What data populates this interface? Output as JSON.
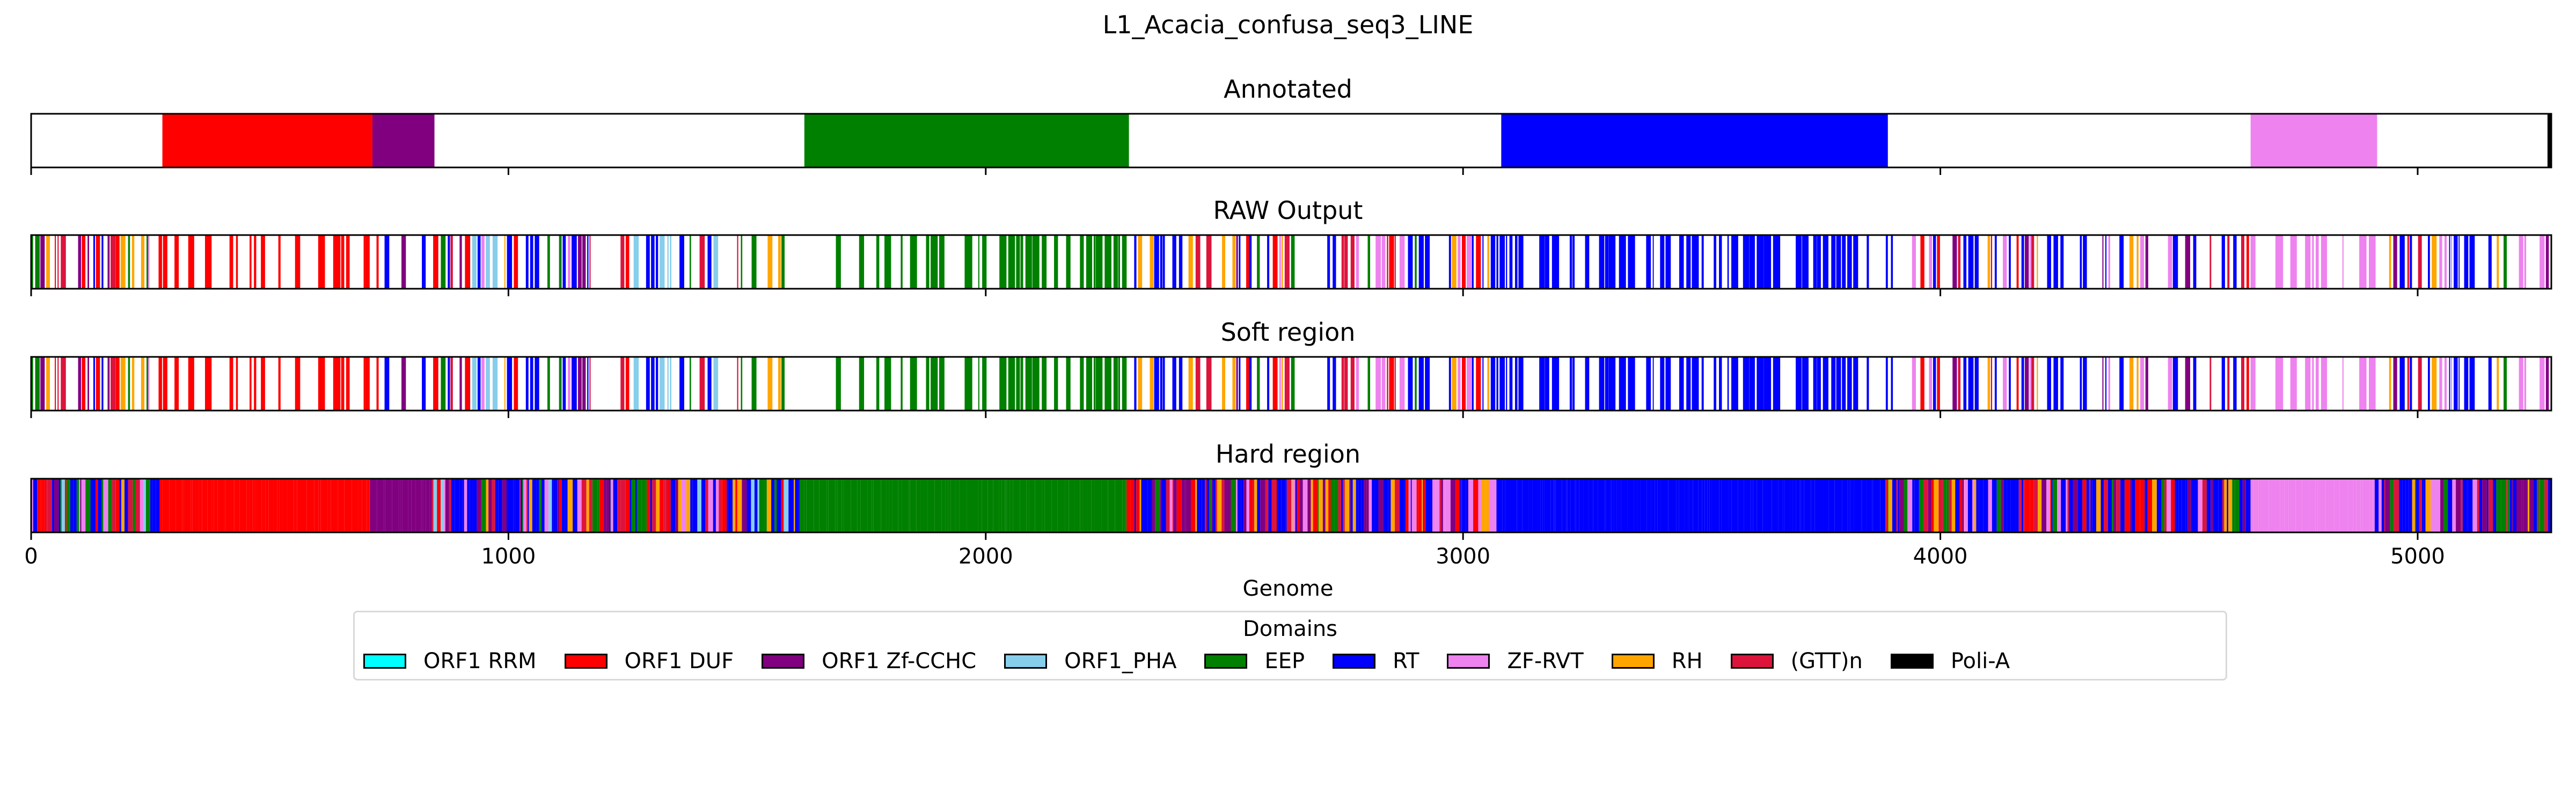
{
  "figure": {
    "title": "L1_Acacia_confusa_seq3_LINE",
    "xlabel": "Genome"
  },
  "legend": {
    "title": "Domains",
    "items": [
      {
        "label": "ORF1 RRM",
        "color": "#00ffff"
      },
      {
        "label": "ORF1 DUF",
        "color": "#ff0000"
      },
      {
        "label": "ORF1 Zf-CCHC",
        "color": "#800080"
      },
      {
        "label": "ORF1_PHA",
        "color": "#87ceeb"
      },
      {
        "label": "EEP",
        "color": "#008000"
      },
      {
        "label": "RT",
        "color": "#0000ff"
      },
      {
        "label": "ZF-RVT",
        "color": "#ee82ee"
      },
      {
        "label": "RH",
        "color": "#ffa500"
      },
      {
        "label": "(GTT)n",
        "color": "#dc143c"
      },
      {
        "label": "Poli-A",
        "color": "#000000"
      }
    ]
  },
  "chart_data": {
    "type": "bar",
    "orientation": "horizontal-track",
    "xlim": [
      0,
      5280
    ],
    "x_ticks": [
      0,
      1000,
      2000,
      3000,
      4000,
      5000
    ],
    "tracks": [
      {
        "title": "Annotated",
        "mode": "segments",
        "segments": [
          {
            "domain": "ORF1 DUF",
            "start": 275,
            "end": 715
          },
          {
            "domain": "ORF1 Zf-CCHC",
            "start": 715,
            "end": 845
          },
          {
            "domain": "EEP",
            "start": 1620,
            "end": 2300
          },
          {
            "domain": "RT",
            "start": 3080,
            "end": 3890
          },
          {
            "domain": "ZF-RVT",
            "start": 4650,
            "end": 4915
          },
          {
            "domain": "Poli-A",
            "start": 5272,
            "end": 5280
          }
        ]
      },
      {
        "title": "RAW Output",
        "mode": "stripes",
        "seed": 11,
        "regions": [
          {
            "start": 0,
            "end": 260,
            "domains": [
              "ORF1 DUF",
              "EEP",
              "RT",
              "ORF1 Zf-CCHC",
              "ORF1_PHA",
              "RH",
              "(GTT)n",
              "ZF-RVT"
            ],
            "density": 0.7
          },
          {
            "start": 260,
            "end": 700,
            "domains": [
              "ORF1 DUF"
            ],
            "density": 0.55
          },
          {
            "start": 700,
            "end": 850,
            "domains": [
              "ORF1 Zf-CCHC",
              "ORF1 DUF",
              "RT"
            ],
            "density": 0.6
          },
          {
            "start": 850,
            "end": 1600,
            "domains": [
              "RT",
              "ORF1 Zf-CCHC",
              "ZF-RVT",
              "EEP",
              "RH",
              "(GTT)n",
              "ORF1 DUF",
              "ORF1_PHA"
            ],
            "density": 0.6
          },
          {
            "start": 1600,
            "end": 2300,
            "domains": [
              "EEP"
            ],
            "density": 0.55
          },
          {
            "start": 2300,
            "end": 3070,
            "domains": [
              "RT",
              "ZF-RVT",
              "(GTT)n",
              "EEP",
              "RH",
              "ORF1 Zf-CCHC",
              "ORF1 DUF"
            ],
            "density": 0.6
          },
          {
            "start": 3070,
            "end": 3890,
            "domains": [
              "RT"
            ],
            "density": 0.6
          },
          {
            "start": 3890,
            "end": 4650,
            "domains": [
              "RT",
              "(GTT)n",
              "EEP",
              "ZF-RVT",
              "ORF1 Zf-CCHC",
              "RH",
              "ORF1 DUF"
            ],
            "density": 0.65
          },
          {
            "start": 4650,
            "end": 4915,
            "domains": [
              "ZF-RVT"
            ],
            "density": 0.35
          },
          {
            "start": 4915,
            "end": 5280,
            "domains": [
              "RT",
              "EEP",
              "ZF-RVT",
              "(GTT)n",
              "ORF1 Zf-CCHC",
              "RH"
            ],
            "density": 0.65
          }
        ]
      },
      {
        "title": "Soft region",
        "mode": "stripes",
        "seed": 11,
        "regions": [
          {
            "start": 0,
            "end": 260,
            "domains": [
              "ORF1 DUF",
              "EEP",
              "RT",
              "ORF1 Zf-CCHC",
              "ORF1_PHA",
              "RH",
              "(GTT)n",
              "ZF-RVT"
            ],
            "density": 0.7
          },
          {
            "start": 260,
            "end": 700,
            "domains": [
              "ORF1 DUF"
            ],
            "density": 0.55
          },
          {
            "start": 700,
            "end": 850,
            "domains": [
              "ORF1 Zf-CCHC",
              "ORF1 DUF",
              "RT"
            ],
            "density": 0.6
          },
          {
            "start": 850,
            "end": 1600,
            "domains": [
              "RT",
              "ORF1 Zf-CCHC",
              "ZF-RVT",
              "EEP",
              "RH",
              "(GTT)n",
              "ORF1 DUF",
              "ORF1_PHA"
            ],
            "density": 0.6
          },
          {
            "start": 1600,
            "end": 2300,
            "domains": [
              "EEP"
            ],
            "density": 0.55
          },
          {
            "start": 2300,
            "end": 3070,
            "domains": [
              "RT",
              "ZF-RVT",
              "(GTT)n",
              "EEP",
              "RH",
              "ORF1 Zf-CCHC",
              "ORF1 DUF"
            ],
            "density": 0.6
          },
          {
            "start": 3070,
            "end": 3890,
            "domains": [
              "RT"
            ],
            "density": 0.6
          },
          {
            "start": 3890,
            "end": 4650,
            "domains": [
              "RT",
              "(GTT)n",
              "EEP",
              "ZF-RVT",
              "ORF1 Zf-CCHC",
              "RH",
              "ORF1 DUF"
            ],
            "density": 0.65
          },
          {
            "start": 4650,
            "end": 4915,
            "domains": [
              "ZF-RVT"
            ],
            "density": 0.35
          },
          {
            "start": 4915,
            "end": 5280,
            "domains": [
              "RT",
              "EEP",
              "ZF-RVT",
              "(GTT)n",
              "ORF1 Zf-CCHC",
              "RH"
            ],
            "density": 0.65
          }
        ]
      },
      {
        "title": "Hard region",
        "mode": "stripes",
        "seed": 23,
        "regions": [
          {
            "start": 0,
            "end": 275,
            "domains": [
              "RT",
              "EEP",
              "ORF1 DUF",
              "ORF1 Zf-CCHC",
              "ZF-RVT",
              "RH",
              "(GTT)n",
              "ORF1_PHA"
            ],
            "density": 1.0
          },
          {
            "start": 275,
            "end": 710,
            "domains": [
              "ORF1 DUF"
            ],
            "density": 1.0
          },
          {
            "start": 710,
            "end": 840,
            "domains": [
              "ORF1 Zf-CCHC"
            ],
            "density": 1.0
          },
          {
            "start": 840,
            "end": 1610,
            "domains": [
              "RT",
              "ZF-RVT",
              "ORF1 Zf-CCHC",
              "EEP",
              "RH",
              "(GTT)n",
              "ORF1 DUF",
              "ORF1_PHA"
            ],
            "density": 1.0
          },
          {
            "start": 1610,
            "end": 2295,
            "domains": [
              "EEP"
            ],
            "density": 1.0
          },
          {
            "start": 2295,
            "end": 3070,
            "domains": [
              "RT",
              "ZF-RVT",
              "(GTT)n",
              "EEP",
              "RH",
              "ORF1 Zf-CCHC",
              "ORF1 DUF"
            ],
            "density": 1.0
          },
          {
            "start": 3070,
            "end": 3885,
            "domains": [
              "RT"
            ],
            "density": 1.0
          },
          {
            "start": 3885,
            "end": 4650,
            "domains": [
              "RT",
              "(GTT)n",
              "EEP",
              "ZF-RVT",
              "ORF1 Zf-CCHC",
              "RH",
              "ORF1 DUF"
            ],
            "density": 1.0
          },
          {
            "start": 4650,
            "end": 4910,
            "domains": [
              "ZF-RVT"
            ],
            "density": 1.0
          },
          {
            "start": 4910,
            "end": 5280,
            "domains": [
              "RT",
              "EEP",
              "ZF-RVT",
              "(GTT)n",
              "ORF1 Zf-CCHC",
              "RH"
            ],
            "density": 1.0
          }
        ]
      }
    ]
  }
}
